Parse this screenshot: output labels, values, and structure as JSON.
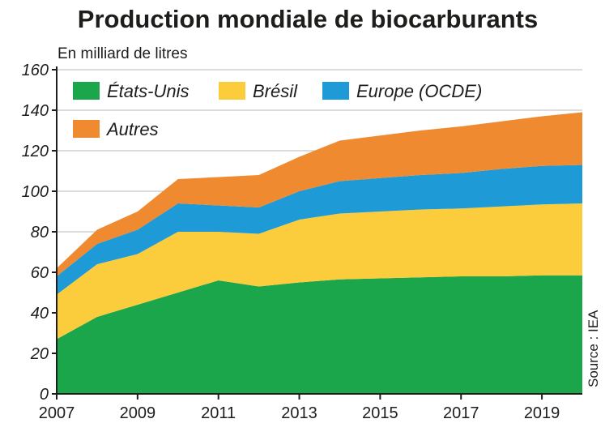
{
  "chart_data": {
    "type": "area",
    "stacked": true,
    "title": "Production mondiale de biocarburants",
    "ylabel": "En milliard de litres",
    "source": "Source : IEA",
    "x": [
      2007,
      2008,
      2009,
      2010,
      2011,
      2012,
      2013,
      2014,
      2015,
      2016,
      2017,
      2018,
      2019,
      2020
    ],
    "xticks": [
      "2007",
      "2009",
      "2011",
      "2013",
      "2015",
      "2017",
      "2019"
    ],
    "ylim": [
      0,
      160
    ],
    "yticks": [
      "0",
      "20",
      "40",
      "60",
      "80",
      "100",
      "120",
      "140",
      "160"
    ],
    "grid": true,
    "legend_position": "top-left",
    "series": [
      {
        "name": "États-Unis",
        "color": "#1ba64b",
        "values": [
          27,
          38,
          44,
          50,
          56,
          53,
          55,
          56.5,
          57,
          57.5,
          58,
          58,
          58.5,
          58.5
        ]
      },
      {
        "name": "Brésil",
        "color": "#fbcd3c",
        "values": [
          22,
          26,
          25,
          30,
          24,
          26,
          31,
          32.5,
          33,
          33.5,
          33.5,
          34.5,
          35,
          35.5
        ]
      },
      {
        "name": "Europe (OCDE)",
        "color": "#1e9ad6",
        "values": [
          9,
          10,
          12,
          14,
          13,
          13,
          14,
          16,
          16.5,
          17,
          17.5,
          18.5,
          19,
          19
        ]
      },
      {
        "name": "Autres",
        "color": "#ef8a31",
        "values": [
          4,
          7,
          9,
          12,
          14,
          16,
          17,
          20,
          21,
          22,
          23,
          23.5,
          24.5,
          26
        ]
      }
    ]
  }
}
